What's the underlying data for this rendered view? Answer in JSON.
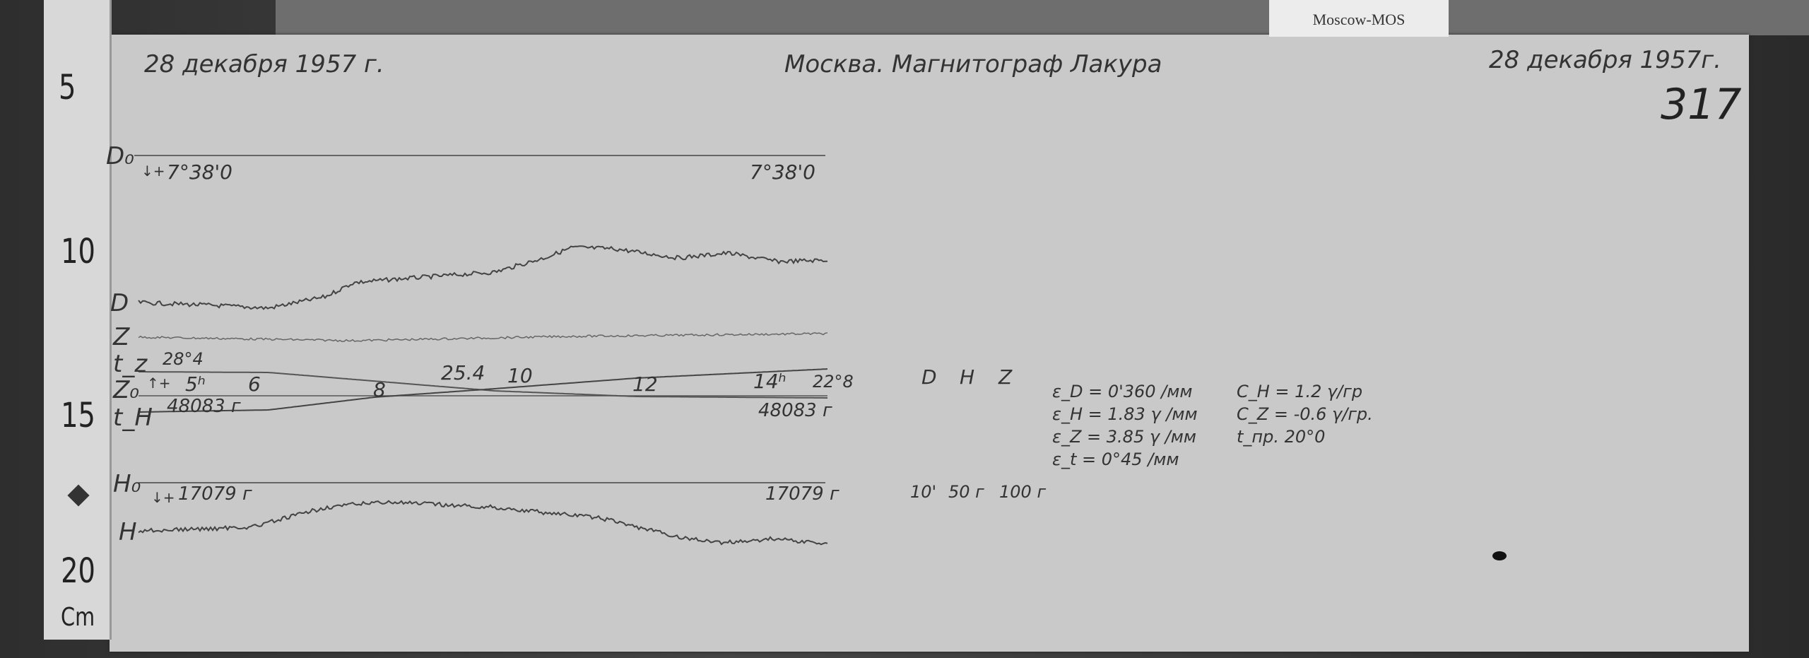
{
  "tag": "Moscow-MOS",
  "header": {
    "date_left": "28 декабря 1957 г.",
    "title": "Москва. Магнитограф Лакура",
    "date_right": "28 декабря 1957г.",
    "sheet_no": "317"
  },
  "ruler": {
    "marks": [
      "5",
      "10",
      "15",
      "20"
    ],
    "unit": "Cm"
  },
  "traces": {
    "d0_label": "D₀",
    "d0_sign": "↓+",
    "d0_left": "7°38'0",
    "d0_right": "7°38'0",
    "d_label": "D",
    "z_label": "Z",
    "tz_label": "t_z",
    "tz_value": "28°4",
    "z0_label": "Z₀",
    "z0_sign": "↑+",
    "th_label": "t_H",
    "z0_left": "48083 г",
    "z0_right": "48083 г",
    "hours": [
      "5ʰ",
      "6",
      "8",
      "10",
      "12",
      "14ʰ"
    ],
    "temp_mid": "25.4",
    "temp_right": "22°8",
    "h0_label": "H₀",
    "h0_sign": "↓+",
    "h0_left": "17079 г",
    "h0_right": "17079 г",
    "h_label": "H"
  },
  "scales": {
    "heads": [
      "D",
      "H",
      "Z"
    ],
    "feet": [
      "10'",
      "50 г",
      "100 г"
    ]
  },
  "constants": {
    "left": [
      "ε_D = 0'360 /мм",
      "ε_H = 1.83 γ /мм",
      "ε_Z = 3.85 γ /мм",
      "ε_t = 0°45 /мм"
    ],
    "right": [
      "C_H = 1.2 γ/гр",
      "C_Z = -0.6 γ/гр.",
      "t_пр. 20°0"
    ]
  }
}
